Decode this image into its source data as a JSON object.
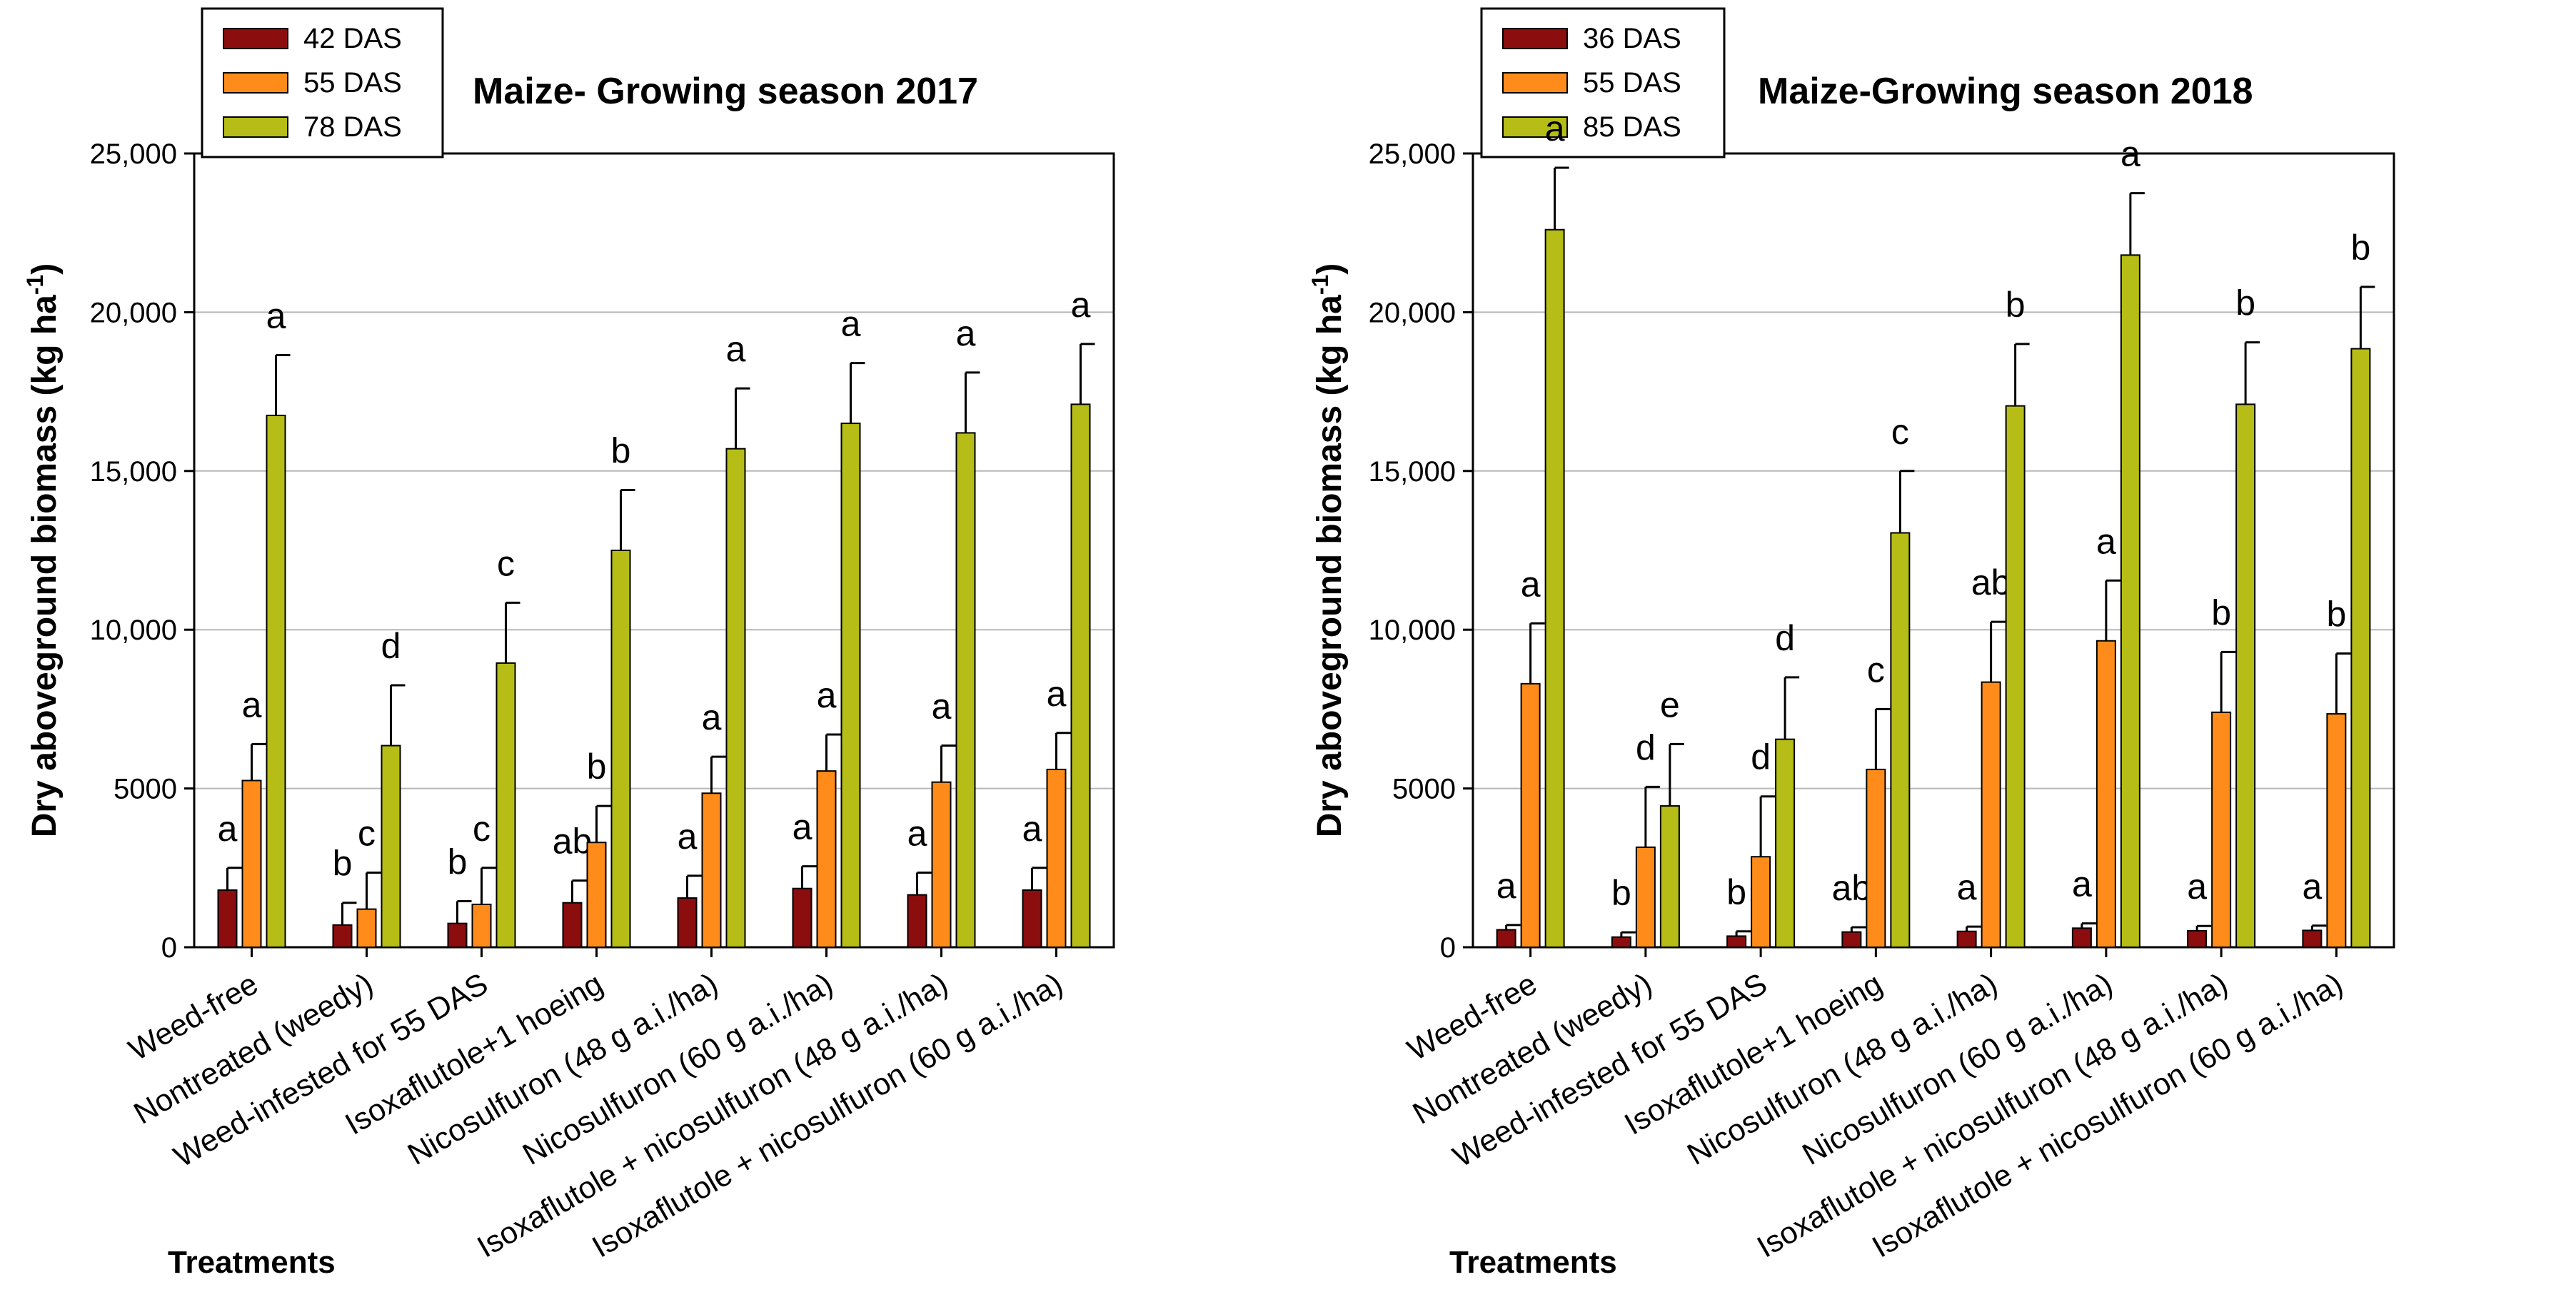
{
  "chart_data": [
    {
      "type": "bar",
      "title": "Maize- Growing season 2017",
      "ylabel": "Dry aboveground biomass (kg ha-1)",
      "ylabel_main": "Dry aboveground biomass (kg ha",
      "ylabel_sup": "-1",
      "ylabel_close": ")",
      "xlabel": "Treatments",
      "ylim": [
        0,
        25000
      ],
      "yticks": [
        0,
        5000,
        10000,
        15000,
        20000,
        25000
      ],
      "ytick_labels": [
        "0",
        "5000",
        "10,000",
        "15,000",
        "20,000",
        "25,000"
      ],
      "grid": true,
      "legend_position": "top-left",
      "categories": [
        "Weed-free",
        "Nontreated (weedy)",
        "Weed-infested for 55 DAS",
        "Isoxaflutole+1 hoeing",
        "Nicosulfuron (48 g a.i./ha)",
        "Nicosulfuron (60 g a.i./ha)",
        "Isoxaflutole + nicosulfuron (48 g a.i./ha)",
        "Isoxaflutole + nicosulfuron (60 g a.i./ha)"
      ],
      "series": [
        {
          "name": "42 DAS",
          "color": "#8b0d0d",
          "values": [
            1800,
            700,
            750,
            1400,
            1550,
            1850,
            1650,
            1800
          ],
          "errors": [
            700,
            700,
            700,
            700,
            700,
            700,
            700,
            700
          ],
          "letters": [
            "a",
            "b",
            "b",
            "ab",
            "a",
            "a",
            "a",
            "a"
          ]
        },
        {
          "name": "55 DAS",
          "color": "#ff8c1a",
          "values": [
            5250,
            1200,
            1350,
            3300,
            4850,
            5550,
            5200,
            5600
          ],
          "errors": [
            1150,
            1150,
            1150,
            1150,
            1150,
            1150,
            1150,
            1150
          ],
          "letters": [
            "a",
            "c",
            "c",
            "b",
            "a",
            "a",
            "a",
            "a"
          ]
        },
        {
          "name": "78 DAS",
          "color": "#b5bd16",
          "values": [
            16750,
            6350,
            8950,
            12500,
            15700,
            16500,
            16200,
            17100
          ],
          "errors": [
            1900,
            1900,
            1900,
            1900,
            1900,
            1900,
            1900,
            1900
          ],
          "letters": [
            "a",
            "d",
            "c",
            "b",
            "a",
            "a",
            "a",
            "a"
          ]
        }
      ]
    },
    {
      "type": "bar",
      "title": "Maize-Growing season 2018",
      "ylabel": "Dry aboveground biomass (kg ha-1)",
      "ylabel_main": "Dry aboveground biomass (kg ha",
      "ylabel_sup": "-1",
      "ylabel_close": ")",
      "xlabel": "Treatments",
      "ylim": [
        0,
        25000
      ],
      "yticks": [
        0,
        5000,
        10000,
        15000,
        20000,
        25000
      ],
      "ytick_labels": [
        "0",
        "5000",
        "10,000",
        "15,000",
        "20,000",
        "25,000"
      ],
      "grid": true,
      "legend_position": "top-left",
      "categories": [
        "Weed-free",
        "Nontreated (weedy)",
        "Weed-infested for 55 DAS",
        "Isoxaflutole+1 hoeing",
        "Nicosulfuron (48 g a.i./ha)",
        "Nicosulfuron (60 g a.i./ha)",
        "Isoxaflutole + nicosulfuron (48 g a.i./ha)",
        "Isoxaflutole + nicosulfuron (60 g a.i./ha)"
      ],
      "series": [
        {
          "name": "36 DAS",
          "color": "#8b0d0d",
          "values": [
            550,
            320,
            350,
            480,
            500,
            600,
            520,
            530
          ],
          "errors": [
            150,
            150,
            150,
            150,
            150,
            150,
            150,
            150
          ],
          "letters": [
            "a",
            "b",
            "b",
            "ab",
            "a",
            "a",
            "a",
            "a"
          ]
        },
        {
          "name": "55 DAS",
          "color": "#ff8c1a",
          "values": [
            8300,
            3150,
            2850,
            5600,
            8350,
            9650,
            7400,
            7350
          ],
          "errors": [
            1900,
            1900,
            1900,
            1900,
            1900,
            1900,
            1900,
            1900
          ],
          "letters": [
            "a",
            "d",
            "d",
            "c",
            "ab",
            "a",
            "b",
            "b"
          ]
        },
        {
          "name": "85 DAS",
          "color": "#b5bd16",
          "values": [
            22600,
            4450,
            6550,
            13050,
            17050,
            21800,
            17100,
            18850
          ],
          "errors": [
            1950,
            1950,
            1950,
            1950,
            1950,
            1950,
            1950,
            1950
          ],
          "letters": [
            "a",
            "e",
            "d",
            "c",
            "b",
            "a",
            "b",
            "b"
          ]
        }
      ]
    }
  ]
}
